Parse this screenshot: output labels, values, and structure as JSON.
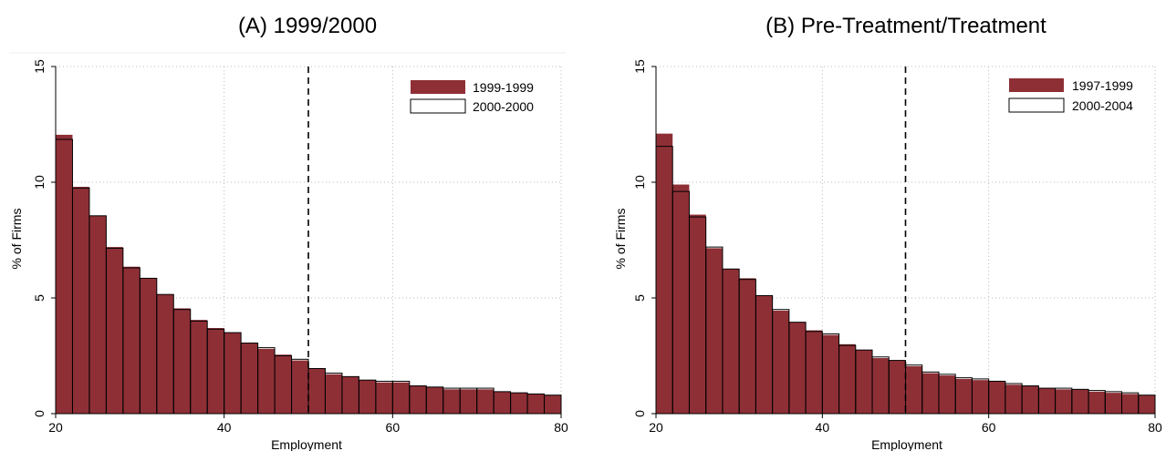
{
  "colors": {
    "bar_fill": "#8e2f36",
    "outline": "#000000",
    "grid": "#b8b8b8",
    "background": "#ffffff"
  },
  "chart_data": [
    {
      "type": "bar",
      "title": "(A) 1999/2000",
      "xlabel": "Employment",
      "ylabel": "% of Firms",
      "xlim": [
        20,
        80
      ],
      "ylim": [
        0,
        15
      ],
      "xticks": [
        20,
        40,
        60,
        80
      ],
      "yticks": [
        0,
        5,
        10,
        15
      ],
      "grid": true,
      "legend_position": "top-right",
      "reference_line_x": 50,
      "bin_width": 2,
      "bin_starts": [
        20,
        22,
        24,
        26,
        28,
        30,
        32,
        34,
        36,
        38,
        40,
        42,
        44,
        46,
        48,
        50,
        52,
        54,
        56,
        58,
        60,
        62,
        64,
        66,
        68,
        70,
        72,
        74,
        76,
        78
      ],
      "series": [
        {
          "name": "1999-1999",
          "style": "filled",
          "values": [
            12.05,
            9.8,
            8.55,
            7.2,
            6.35,
            5.85,
            5.15,
            4.55,
            4.05,
            3.7,
            3.5,
            3.05,
            2.8,
            2.55,
            2.3,
            1.95,
            1.7,
            1.6,
            1.45,
            1.35,
            1.35,
            1.2,
            1.15,
            1.05,
            1.05,
            1.05,
            0.95,
            0.9,
            0.85,
            0.8
          ]
        },
        {
          "name": "2000-2000",
          "style": "outline",
          "values": [
            11.85,
            9.75,
            8.55,
            7.15,
            6.3,
            5.85,
            5.15,
            4.5,
            4.0,
            3.65,
            3.5,
            3.05,
            2.85,
            2.5,
            2.35,
            1.95,
            1.75,
            1.6,
            1.45,
            1.4,
            1.4,
            1.2,
            1.15,
            1.1,
            1.1,
            1.1,
            0.95,
            0.9,
            0.85,
            0.8
          ]
        }
      ]
    },
    {
      "type": "bar",
      "title": "(B) Pre-Treatment/Treatment",
      "xlabel": "Employment",
      "ylabel": "% of Firms",
      "xlim": [
        20,
        80
      ],
      "ylim": [
        0,
        15
      ],
      "xticks": [
        20,
        40,
        60,
        80
      ],
      "yticks": [
        0,
        5,
        10,
        15
      ],
      "grid": true,
      "legend_position": "top-right",
      "reference_line_x": 50,
      "bin_width": 2,
      "bin_starts": [
        20,
        22,
        24,
        26,
        28,
        30,
        32,
        34,
        36,
        38,
        40,
        42,
        44,
        46,
        48,
        50,
        52,
        54,
        56,
        58,
        60,
        62,
        64,
        66,
        68,
        70,
        72,
        74,
        76,
        78
      ],
      "series": [
        {
          "name": "1997-1999",
          "style": "filled",
          "values": [
            12.1,
            9.9,
            8.6,
            7.15,
            6.25,
            5.85,
            5.1,
            4.45,
            3.95,
            3.6,
            3.4,
            3.0,
            2.75,
            2.4,
            2.3,
            2.05,
            1.75,
            1.65,
            1.5,
            1.45,
            1.4,
            1.25,
            1.2,
            1.1,
            1.05,
            1.05,
            0.95,
            0.9,
            0.85,
            0.8
          ]
        },
        {
          "name": "2000-2004",
          "style": "outline",
          "values": [
            11.55,
            9.6,
            8.5,
            7.2,
            6.25,
            5.8,
            5.1,
            4.5,
            3.95,
            3.55,
            3.45,
            2.95,
            2.75,
            2.45,
            2.3,
            2.1,
            1.8,
            1.7,
            1.55,
            1.5,
            1.4,
            1.3,
            1.2,
            1.1,
            1.1,
            1.05,
            1.0,
            0.95,
            0.9,
            0.8
          ]
        }
      ]
    }
  ]
}
